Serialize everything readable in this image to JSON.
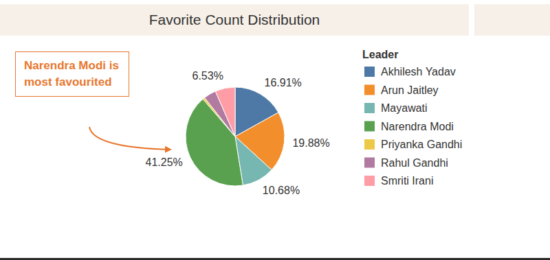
{
  "chart_data": {
    "type": "pie",
    "title": "Favorite Count Distribution",
    "annotation": "Narendra Modi is most favourited",
    "legend_title": "Leader",
    "categories": [
      "Akhilesh Yadav",
      "Arun Jaitley",
      "Mayawati",
      "Narendra Modi",
      "Priyanka Gandhi",
      "Rahul Gandhi",
      "Smriti Irani"
    ],
    "values": [
      16.91,
      19.88,
      10.68,
      41.25,
      0.7,
      4.05,
      6.53
    ],
    "value_labels": [
      "16.91%",
      "19.88%",
      "10.68%",
      "41.25%",
      null,
      null,
      "6.53%"
    ],
    "colors": [
      "#4e79a7",
      "#f28e2b",
      "#76b7b2",
      "#59a14f",
      "#edc948",
      "#b07aa1",
      "#ff9da7"
    ],
    "data_labels": true,
    "legend": "right"
  }
}
